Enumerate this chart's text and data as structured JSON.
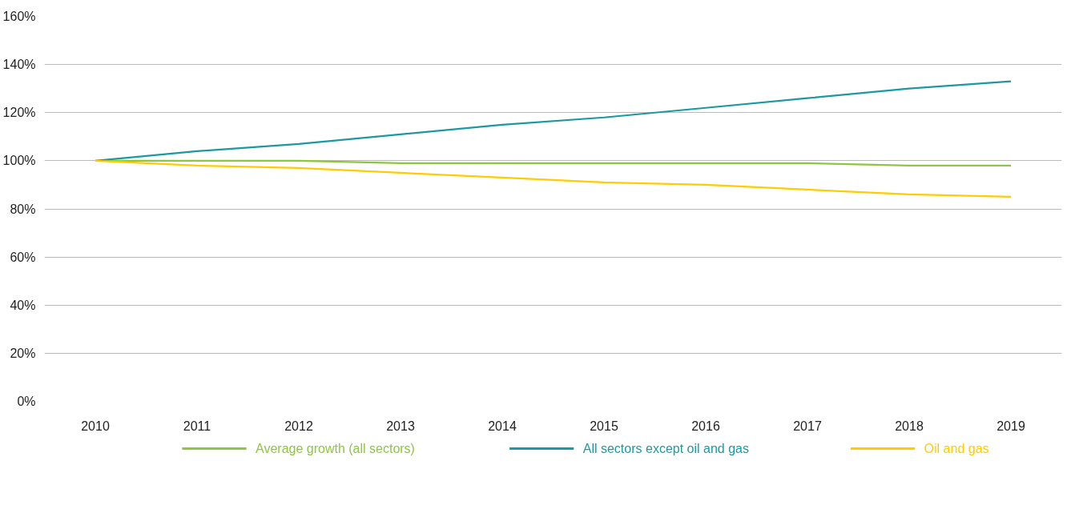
{
  "chart_data": {
    "type": "line",
    "categories": [
      "2010",
      "2011",
      "2012",
      "2013",
      "2014",
      "2015",
      "2016",
      "2017",
      "2018",
      "2019"
    ],
    "series": [
      {
        "name": "Average growth (all sectors)",
        "color": "#8dc63f",
        "values": [
          100,
          100,
          100,
          99,
          99,
          99,
          99,
          99,
          98,
          98
        ]
      },
      {
        "name": "All sectors except oil and gas",
        "color": "#1a9aa0",
        "values": [
          100,
          104,
          107,
          111,
          115,
          118,
          122,
          126,
          130,
          133
        ]
      },
      {
        "name": "Oil and gas",
        "color": "#ffcc00",
        "values": [
          100,
          98,
          97,
          95,
          93,
          91,
          90,
          88,
          86,
          85
        ]
      }
    ],
    "ylim": [
      0,
      160
    ],
    "yticks": [
      {
        "value": 0,
        "label": "0%"
      },
      {
        "value": 20,
        "label": "20%"
      },
      {
        "value": 40,
        "label": "40%"
      },
      {
        "value": 60,
        "label": "60%"
      },
      {
        "value": 80,
        "label": "80%"
      },
      {
        "value": 100,
        "label": "100%"
      },
      {
        "value": 120,
        "label": "120%"
      },
      {
        "value": 140,
        "label": "140%"
      },
      {
        "value": 160,
        "label": "160%"
      }
    ],
    "grid": "y",
    "legend": "bottom",
    "marker": "none",
    "line_style": "solid"
  }
}
